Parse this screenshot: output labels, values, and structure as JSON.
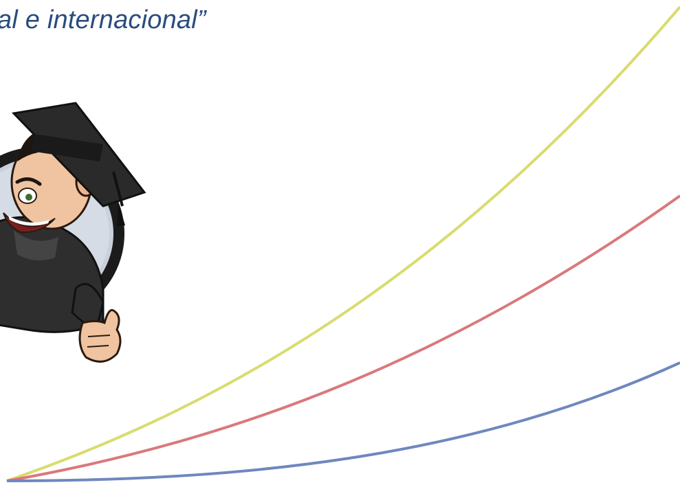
{
  "slide": {
    "title_fragment": "al e internacional”"
  },
  "colors": {
    "title": "#2a4c7e",
    "curve_yellow": "#d8dc6e",
    "curve_red": "#d9797c",
    "curve_blue": "#6f87bf"
  },
  "icons": {
    "mascot": "graduate-student-thumbs-up-icon"
  }
}
